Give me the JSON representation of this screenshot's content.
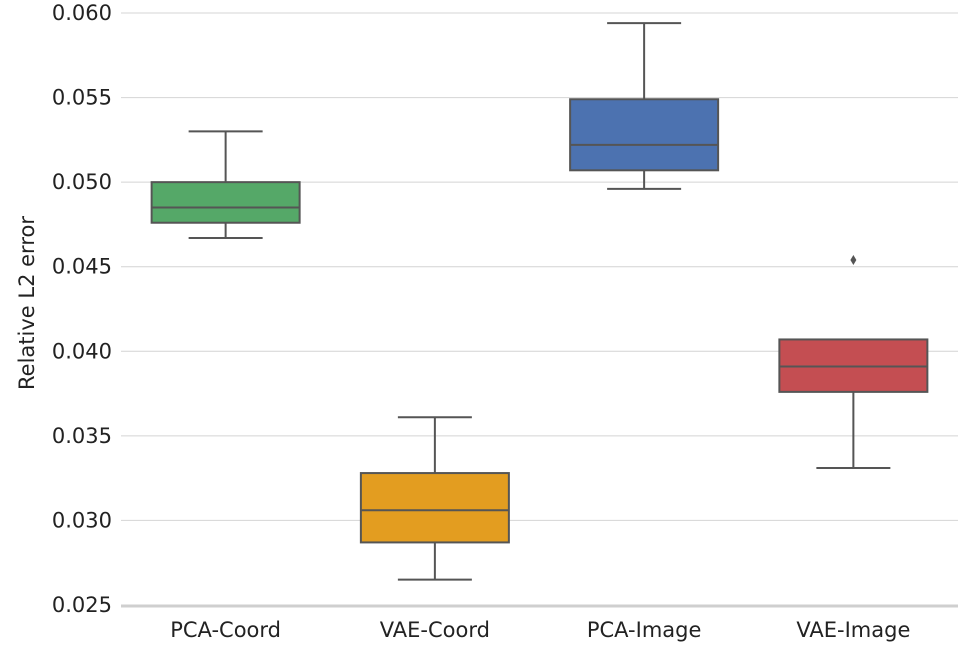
{
  "chart_data": {
    "type": "box",
    "title": "",
    "xlabel": "",
    "ylabel": "Relative L2 error",
    "ylim": [
      0.025,
      0.06
    ],
    "yticks": [
      0.025,
      0.03,
      0.035,
      0.04,
      0.045,
      0.05,
      0.055,
      0.06
    ],
    "ytick_labels": [
      "0.025",
      "0.030",
      "0.035",
      "0.040",
      "0.045",
      "0.050",
      "0.055",
      "0.060"
    ],
    "grid": "y",
    "categories": [
      "PCA-Coord",
      "VAE-Coord",
      "PCA-Image",
      "VAE-Image"
    ],
    "boxes": [
      {
        "name": "PCA-Coord",
        "color": "#55a868",
        "whisker_low": 0.0467,
        "q1": 0.0476,
        "median": 0.0485,
        "q3": 0.05,
        "whisker_high": 0.053,
        "outliers": []
      },
      {
        "name": "VAE-Coord",
        "color": "#e39d20",
        "whisker_low": 0.0265,
        "q1": 0.0287,
        "median": 0.0306,
        "q3": 0.0328,
        "whisker_high": 0.0361,
        "outliers": []
      },
      {
        "name": "PCA-Image",
        "color": "#4c72b0",
        "whisker_low": 0.0496,
        "q1": 0.0507,
        "median": 0.0522,
        "q3": 0.0549,
        "whisker_high": 0.0594,
        "outliers": []
      },
      {
        "name": "VAE-Image",
        "color": "#c44e52",
        "whisker_low": 0.0331,
        "q1": 0.0376,
        "median": 0.0391,
        "q3": 0.0407,
        "whisker_high": 0.0407,
        "outliers": [
          0.0454
        ]
      }
    ]
  }
}
